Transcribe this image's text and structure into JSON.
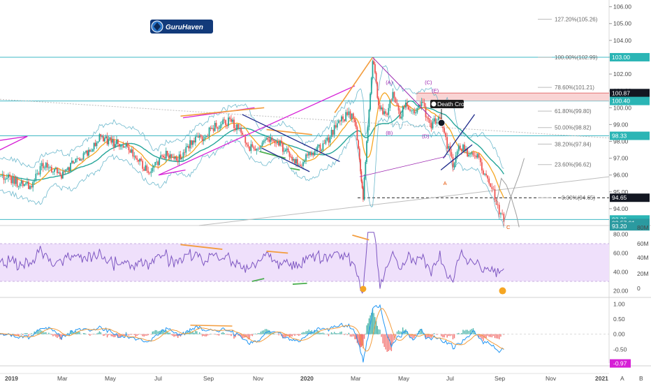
{
  "chart_data": [
    {
      "type": "line",
      "panel": "price",
      "y_axis_ticks": [
        106.0,
        105.0,
        104.0,
        103.0,
        102.0,
        101.0,
        100.0,
        99.0,
        98.0,
        97.0,
        96.0,
        95.0,
        94.0
      ],
      "ylim": [
        93.0,
        106.4
      ],
      "x_axis_ticks": [
        "2019",
        "Mar",
        "May",
        "Jul",
        "Sep",
        "Nov",
        "2020",
        "Mar",
        "May",
        "Jul",
        "Sep",
        "Nov",
        "2021"
      ],
      "series": [
        {
          "values": [
            {
              "x": "2019",
              "y": 96.2
            },
            {
              "x": "Jan 2019",
              "y": 95.3
            },
            {
              "x": "Feb 2019",
              "y": 96.6
            },
            {
              "x": "Mar 2019",
              "y": 96.0
            },
            {
              "x": "Apr 2019",
              "y": 97.3
            },
            {
              "x": "May 2019",
              "y": 98.1
            },
            {
              "x": "Jun 2019",
              "y": 96.5
            },
            {
              "x": "Jul 2019",
              "y": 97.2
            },
            {
              "x": "Aug 2019",
              "y": 98.3
            },
            {
              "x": "Sep 2019",
              "y": 99.2
            },
            {
              "x": "Oct 2019",
              "y": 97.4
            },
            {
              "x": "Nov 2019",
              "y": 98.1
            },
            {
              "x": "Dec 2019",
              "y": 96.8
            },
            {
              "x": "Jan 2020",
              "y": 97.6
            },
            {
              "x": "Feb 2020",
              "y": 99.5
            },
            {
              "x": "Mar 2020",
              "y": 94.65
            },
            {
              "x": "Mar 2020",
              "y": 102.99
            },
            {
              "x": "Apr 2020",
              "y": 99.8
            },
            {
              "x": "May 2020",
              "y": 100.2
            },
            {
              "x": "Jun 2020",
              "y": 96.6
            },
            {
              "x": "Jul 2020",
              "y": 97.4
            },
            {
              "x": "Jul 2020",
              "y": 95.5
            },
            {
              "x": "Aug 2020",
              "y": 93.2
            }
          ]
        }
      ],
      "price_tags": [
        {
          "label": "103.00",
          "value": 103.0,
          "color": "#2bb5b5"
        },
        {
          "label": "100.87",
          "value": 100.87,
          "color": "#131722"
        },
        {
          "label": "100.40",
          "value": 100.4,
          "color": "#2bb5b5"
        },
        {
          "label": "98.33",
          "value": 98.33,
          "color": "#2bb5b5"
        },
        {
          "label": "94.65",
          "value": 94.65,
          "color": "#131722"
        },
        {
          "label": "93.36",
          "value": 93.36,
          "color": "#2bb5b5"
        },
        {
          "label": "03:57:01",
          "value": 93.15,
          "color": "#2b9aa0"
        },
        {
          "label": "93.20",
          "value": 92.95,
          "color": "#2b9aa0"
        }
      ],
      "fibonacci": [
        {
          "label": "127.20%(105.26)",
          "value": 105.26
        },
        {
          "label": "100.00%(102.99)",
          "value": 102.99
        },
        {
          "label": "78.60%(101.21)",
          "value": 101.21
        },
        {
          "label": "61.80%(99.80)",
          "value": 99.8
        },
        {
          "label": "50.00%(98.82)",
          "value": 98.82
        },
        {
          "label": "38.20%(97.84)",
          "value": 97.84
        },
        {
          "label": "23.60%(96.62)",
          "value": 96.62
        },
        {
          "label": "0.00%(94.65)",
          "value": 94.65
        }
      ],
      "wave_labels": [
        {
          "label": "(A)",
          "x": "Apr 2020",
          "y": 101.4,
          "color": "#9c27b0"
        },
        {
          "label": "(C)",
          "x": "May 2020",
          "y": 101.4,
          "color": "#9c27b0"
        },
        {
          "label": "(E)",
          "x": "May 2020",
          "y": 100.9,
          "color": "#9c27b0"
        },
        {
          "label": "(B)",
          "x": "Apr 2020",
          "y": 98.4,
          "color": "#9c27b0"
        },
        {
          "label": "(D)",
          "x": "May 2020",
          "y": 98.2,
          "color": "#9c27b0"
        },
        {
          "label": "A",
          "x": "Jun 2020",
          "y": 95.4,
          "color": "#e65100"
        },
        {
          "label": "C",
          "x": "Aug 2020",
          "y": 92.8,
          "color": "#e65100"
        }
      ],
      "annotation": "Death Cross",
      "logo": "GuruHaven",
      "colors": {
        "price": "#e53935",
        "tag": "#2bb5b5",
        "trend_magenta": "#d61fd6",
        "trend_blue": "#1e2a8a",
        "trend_orange": "#f39c3c"
      }
    },
    {
      "type": "line",
      "panel": "rsi",
      "y_axis_ticks": [
        80.0,
        60.0,
        40.0,
        20.0
      ],
      "ylim": [
        13,
        87
      ],
      "volume_ticks": [
        "80M",
        "60M",
        "40M",
        "20M",
        "0"
      ],
      "band": [
        30,
        70
      ],
      "colors": {
        "line": "#7e57c2",
        "band_fill": "#efe0fb",
        "divergence": "#f39c3c"
      }
    },
    {
      "type": "line",
      "panel": "macd",
      "y_axis_ticks": [
        1.0,
        0.5,
        0.0,
        -0.5
      ],
      "ylim": [
        -1.05,
        1.15
      ],
      "current_value": "-0.97",
      "colors": {
        "macd": "#2196f3",
        "signal": "#f39c3c",
        "hist_up": "#26a69a",
        "hist_down": "#ef5350"
      }
    }
  ],
  "footer": {
    "icon_a": "A",
    "icon_b": "B"
  }
}
